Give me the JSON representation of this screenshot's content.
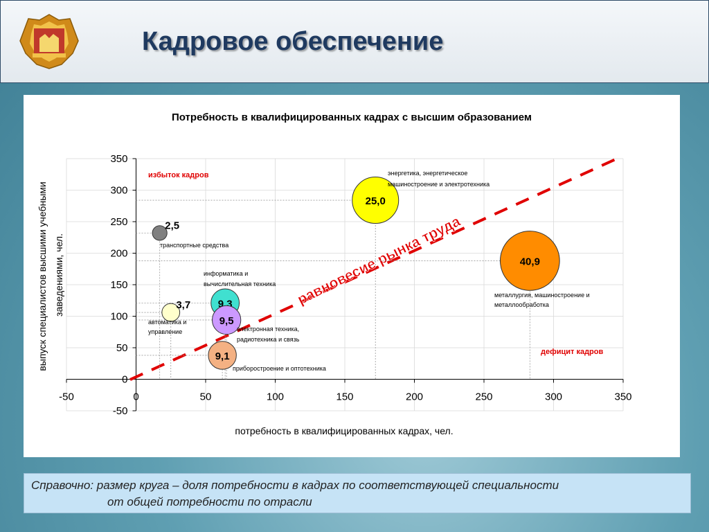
{
  "header": {
    "title": "Кадровое обеспечение"
  },
  "note": {
    "line1": "Справочно: размер круга – доля потребности в кадрах по соответствующей специальности",
    "line2": "от общей потребности по отрасли"
  },
  "chart_data": {
    "type": "scatter",
    "title": "Потребность в квалифицированных кадрах с высшим образованием",
    "xlabel": "потребность в квалифицированных кадрах, чел.",
    "ylabel": [
      "выпуск специалистов высшими учебными",
      "заведениями, чел."
    ],
    "xlim": [
      -50,
      350
    ],
    "ylim": [
      -50,
      350
    ],
    "xticks": [
      "-50",
      "0",
      "50",
      "100",
      "150",
      "200",
      "250",
      "300",
      "350"
    ],
    "yticks": [
      "-50",
      "0",
      "50",
      "100",
      "150",
      "200",
      "250",
      "300",
      "350"
    ],
    "grid": true,
    "bubbles": [
      {
        "x": 17,
        "y": 232,
        "size": 2.5,
        "label": "2,5",
        "category": "транспортные средства",
        "color": "#808080"
      },
      {
        "x": 172,
        "y": 284,
        "size": 25.0,
        "label": "25,0",
        "category": "энергетика, энергетическое машиностроение и электротехника",
        "color": "#ffff00"
      },
      {
        "x": 283,
        "y": 188,
        "size": 40.9,
        "label": "40,9",
        "category": "металлургия, машиностроение и металлообработка",
        "color": "#ff8c00"
      },
      {
        "x": 64,
        "y": 121,
        "size": 9.3,
        "label": "9,3",
        "category": "информатика и вычислительная техника",
        "color": "#40e0d0"
      },
      {
        "x": 25,
        "y": 106,
        "size": 3.7,
        "label": "3,7",
        "category": "автоматика и управление",
        "color": "#ffffcc"
      },
      {
        "x": 65,
        "y": 94,
        "size": 9.5,
        "label": "9,5",
        "category": "электронная техника, радиотехника и связь",
        "color": "#cc99ff"
      },
      {
        "x": 62,
        "y": 38,
        "size": 9.1,
        "label": "9,1",
        "category": "приборостроение и оптотехника",
        "color": "#f4b183"
      }
    ],
    "annotations": {
      "surplus": "избыток кадров",
      "deficit": "дефицит кадров",
      "equilibrium": "равновесие рынка труда"
    },
    "colors": {
      "annotation": "#e00000",
      "equilibrium_line": "#e00000"
    }
  }
}
